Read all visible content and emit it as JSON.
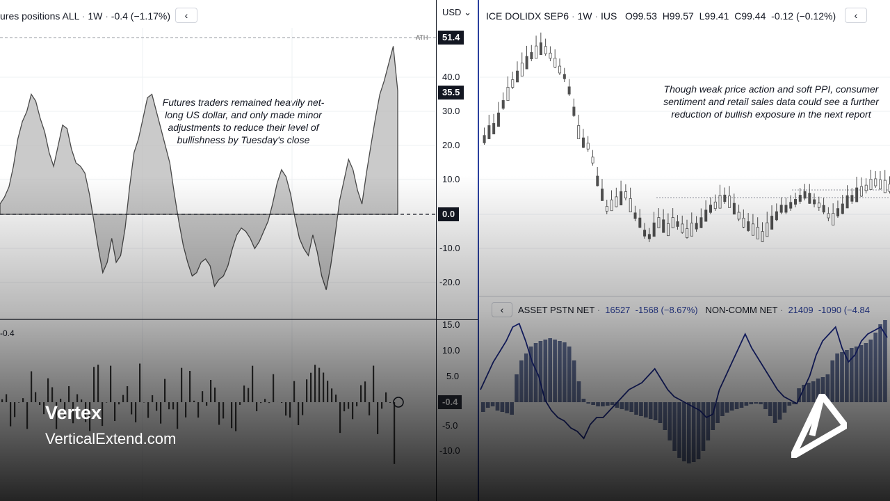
{
  "left_chart": {
    "title": "ures positions ALL",
    "interval": "1W",
    "change": "-0.4 (−1.17%)",
    "ath_label": "ATH",
    "annotation": [
      "Futures traders remained heavily net-",
      "long US dollar, and only made minor",
      "adjustments to reduce their level of",
      "bullishness by Tuesday's close"
    ],
    "sub_label": "-0.4",
    "series_hist": [
      3,
      5,
      8,
      14,
      22,
      27,
      30,
      35,
      33,
      28,
      24,
      18,
      14,
      20,
      26,
      25,
      19,
      15,
      14,
      12,
      6,
      -2,
      -10,
      -17,
      -14,
      -7,
      -14,
      -12,
      -4,
      8,
      18,
      22,
      28,
      34,
      35,
      30,
      25,
      20,
      15,
      6,
      -2,
      -9,
      -14,
      -18,
      -17,
      -14,
      -13,
      -15,
      -21,
      -19,
      -18,
      -15,
      -10,
      -6,
      -4,
      -5,
      -7,
      -10,
      -8,
      -5,
      -2,
      3,
      9,
      13,
      11,
      6,
      -1,
      -7,
      -10,
      -12,
      -6,
      -11,
      -18,
      -22,
      -15,
      -6,
      4,
      10,
      16,
      13,
      7,
      3,
      12,
      20,
      28,
      35,
      39,
      44,
      49,
      36
    ]
  },
  "left_axis": {
    "ticks": [
      "40.0",
      "30.0",
      "20.0",
      "10.0",
      "-10.0",
      "-20.0"
    ],
    "tag_top": "51.4",
    "tag_last": "35.5",
    "tag_zero": "0.0",
    "sub_ticks": [
      "15.0",
      "10.0",
      "5.0",
      "-5.0",
      "-10.0"
    ],
    "sub_tag": "-0.4"
  },
  "currency_selector": "USD",
  "right_chart": {
    "symbol": "ICE DOLIDX SEP6",
    "interval": "1W",
    "exchange": "IUS",
    "open": "O99.53",
    "high": "H99.57",
    "low": "L99.41",
    "close": "C99.44",
    "change": "-0.12 (−0.12%)",
    "annotation": [
      "Though weak price action and soft PPI, consumer",
      "sentiment and retail sales data could see a further",
      "reduction of bullish exposure in the next report"
    ]
  },
  "indicator": {
    "name1": "ASSET PSTN NET",
    "value1": "16527",
    "change1": "-1568 (−8.67%)",
    "name2": "NON-COMM NET",
    "value2": "21409",
    "change2": "-1090 (−4.84"
  },
  "brand": {
    "name": "Vertex",
    "url": "VerticalExtend.com"
  },
  "colors": {
    "accent_blue": "#2a3f9e",
    "area_fill": "#b8b8b8",
    "hist_bar": "#4a5a8a"
  }
}
